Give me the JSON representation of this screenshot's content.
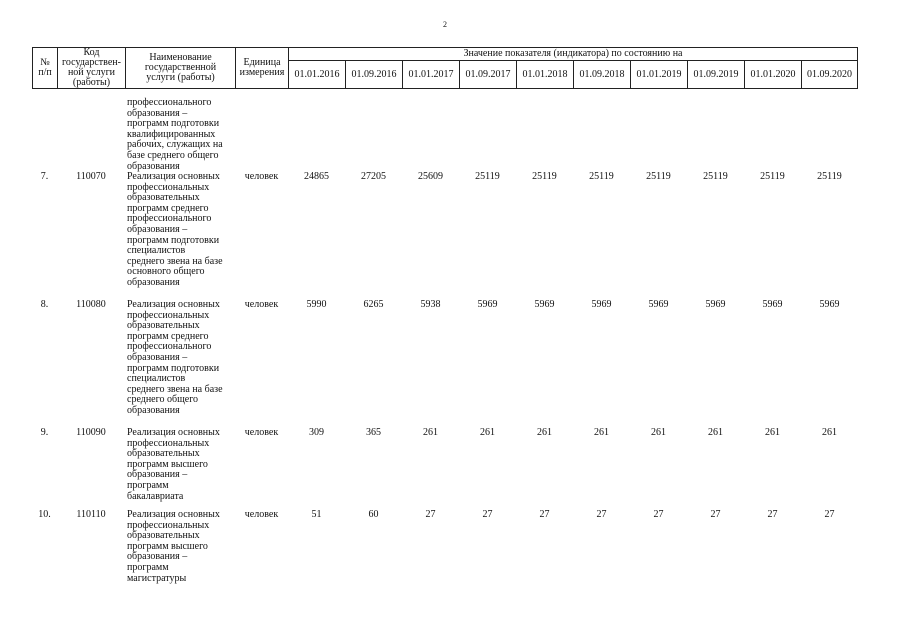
{
  "page_number": "2",
  "header": {
    "num": [
      "№",
      "п/п"
    ],
    "code": [
      "Код",
      "государствен-",
      "ной услуги",
      "(работы)"
    ],
    "name": [
      "Наименование",
      "государственной",
      "услуги (работы)"
    ],
    "unit": [
      "Единица",
      "измерения"
    ],
    "indicator_group": "Значение показателя (индикатора) по состоянию на",
    "dates": [
      "01.01.2016",
      "01.09.2016",
      "01.01.2017",
      "01.09.2017",
      "01.01.2018",
      "01.09.2018",
      "01.01.2019",
      "01.09.2019",
      "01.01.2020",
      "01.09.2020"
    ]
  },
  "continuation_lines": [
    "профессионального",
    "образования –",
    "программ подготовки",
    "квалифицированных",
    "рабочих, служащих на",
    "базе среднего общего",
    "образования"
  ],
  "rows": [
    {
      "num": "7.",
      "code": "110070",
      "name_lines": [
        "Реализация основных",
        "профессиональных",
        "образовательных",
        "программ среднего",
        "профессионального",
        "образования –",
        "программ подготовки",
        "специалистов",
        "среднего звена на базе",
        "основного общего",
        "образования"
      ],
      "unit": "человек",
      "values": [
        "24865",
        "27205",
        "25609",
        "25119",
        "25119",
        "25119",
        "25119",
        "25119",
        "25119",
        "25119"
      ]
    },
    {
      "num": "8.",
      "code": "110080",
      "name_lines": [
        "Реализация основных",
        "профессиональных",
        "образовательных",
        "программ среднего",
        "профессионального",
        "образования –",
        "программ подготовки",
        "специалистов",
        "среднего звена на базе",
        "среднего общего",
        "образования"
      ],
      "unit": "человек",
      "values": [
        "5990",
        "6265",
        "5938",
        "5969",
        "5969",
        "5969",
        "5969",
        "5969",
        "5969",
        "5969"
      ]
    },
    {
      "num": "9.",
      "code": "110090",
      "name_lines": [
        "Реализация основных",
        "профессиональных",
        "образовательных",
        "программ высшего",
        "образования –",
        "программ",
        "бакалавриата"
      ],
      "unit": "человек",
      "values": [
        "309",
        "365",
        "261",
        "261",
        "261",
        "261",
        "261",
        "261",
        "261",
        "261"
      ]
    },
    {
      "num": "10.",
      "code": "110110",
      "name_lines": [
        "Реализация основных",
        "профессиональных",
        "образовательных",
        "программ высшего",
        "образования –",
        "программ",
        "магистратуры"
      ],
      "unit": "человек",
      "values": [
        "51",
        "60",
        "27",
        "27",
        "27",
        "27",
        "27",
        "27",
        "27",
        "27"
      ]
    }
  ]
}
